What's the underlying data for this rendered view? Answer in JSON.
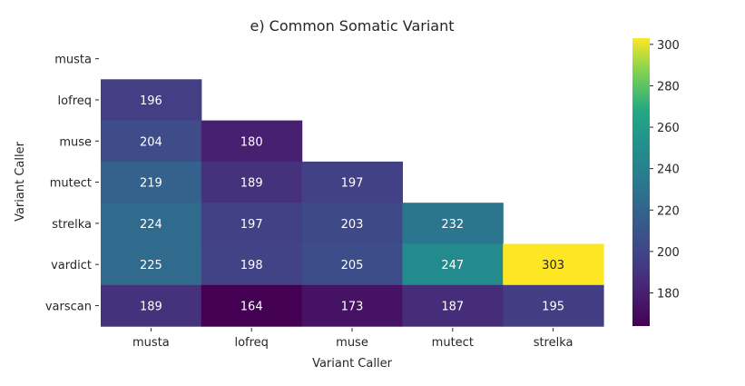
{
  "chart_data": {
    "type": "heatmap",
    "title": "e) Common Somatic Variant",
    "xlabel": "Variant Caller",
    "ylabel": "Variant Caller",
    "x_categories": [
      "musta",
      "lofreq",
      "muse",
      "mutect",
      "strelka"
    ],
    "y_categories": [
      "musta",
      "lofreq",
      "muse",
      "mutect",
      "strelka",
      "vardict",
      "varscan"
    ],
    "values": [
      [
        null,
        null,
        null,
        null,
        null
      ],
      [
        196,
        null,
        null,
        null,
        null
      ],
      [
        204,
        180,
        null,
        null,
        null
      ],
      [
        219,
        189,
        197,
        null,
        null
      ],
      [
        224,
        197,
        203,
        232,
        null
      ],
      [
        225,
        198,
        205,
        247,
        303
      ],
      [
        189,
        164,
        173,
        187,
        195
      ]
    ],
    "colorbar": {
      "min": 164,
      "max": 303,
      "ticks": [
        180,
        200,
        220,
        240,
        260,
        280,
        300
      ],
      "colormap": "viridis"
    },
    "annotation_colors": {
      "light": "#ffffff",
      "dark": "#262626"
    },
    "text_color": "#262626"
  }
}
